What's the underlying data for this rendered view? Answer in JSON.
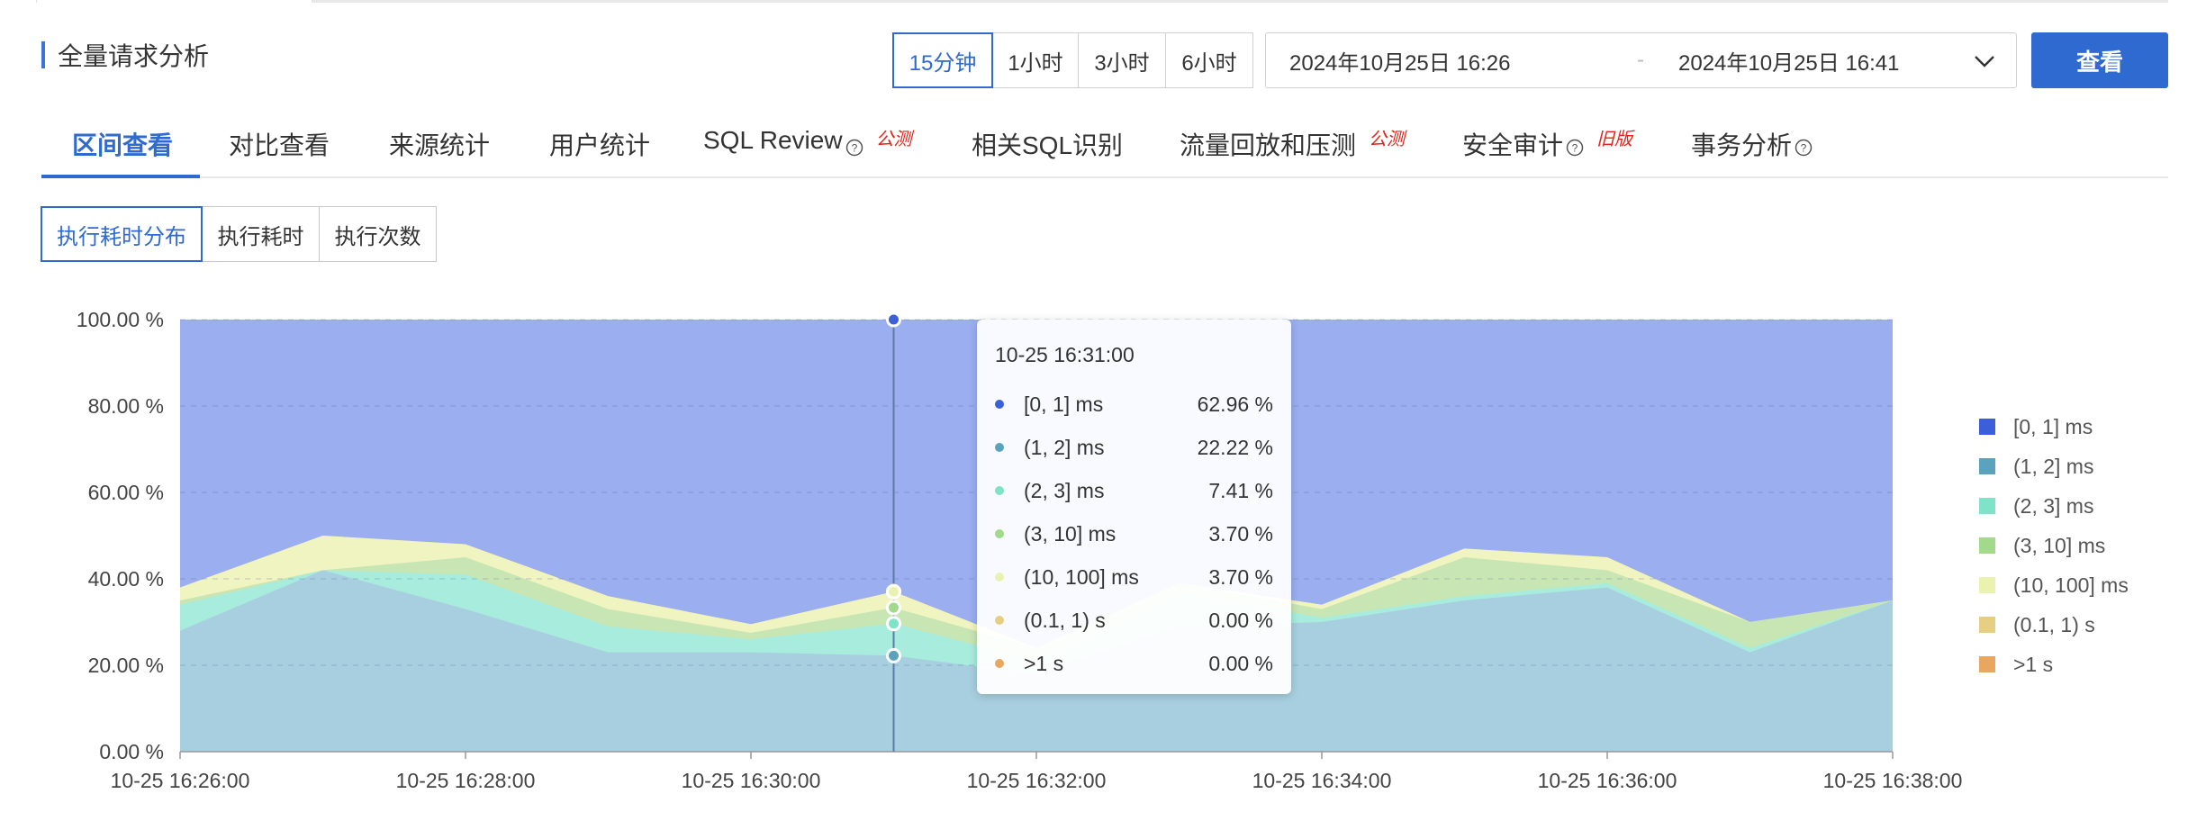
{
  "header": {
    "title": "全量请求分析"
  },
  "time_range": {
    "options": [
      "15分钟",
      "1小时",
      "3小时",
      "6小时"
    ],
    "selected": "15分钟",
    "start": "2024年10月25日 16:26",
    "separator": "-",
    "end": "2024年10月25日 16:41",
    "view_label": "查看"
  },
  "tabs": [
    {
      "label": "区间查看",
      "active": true
    },
    {
      "label": "对比查看"
    },
    {
      "label": "来源统计"
    },
    {
      "label": "用户统计"
    },
    {
      "label": "SQL Review",
      "help": true,
      "badge": "公测"
    },
    {
      "label": "相关SQL识别"
    },
    {
      "label": "流量回放和压测",
      "badge": "公测"
    },
    {
      "label": "安全审计",
      "help": true,
      "badge": "旧版"
    },
    {
      "label": "事务分析",
      "help": true
    }
  ],
  "sub_tabs": [
    {
      "label": "执行耗时分布",
      "active": true
    },
    {
      "label": "执行耗时"
    },
    {
      "label": "执行次数"
    }
  ],
  "colors": {
    "accent": "#2f6ad0",
    "badge": "#e2231a"
  },
  "chart_data": {
    "type": "area",
    "stacked": true,
    "percent": true,
    "x": [
      "10-25 16:26:00",
      "10-25 16:27:00",
      "10-25 16:28:00",
      "10-25 16:29:00",
      "10-25 16:30:00",
      "10-25 16:31:00",
      "10-25 16:32:00",
      "10-25 16:33:00",
      "10-25 16:34:00",
      "10-25 16:35:00",
      "10-25 16:36:00",
      "10-25 16:37:00",
      "10-25 16:38:00"
    ],
    "x_tick_labels": [
      "10-25 16:26:00",
      "10-25 16:28:00",
      "10-25 16:30:00",
      "10-25 16:32:00",
      "10-25 16:34:00",
      "10-25 16:36:00",
      "10-25 16:38:00"
    ],
    "y_tick_labels": [
      "0.00 %",
      "20.00 %",
      "40.00 %",
      "60.00 %",
      "80.00 %",
      "100.00 %"
    ],
    "ylim": [
      0,
      100
    ],
    "grid": true,
    "legend_position": "right",
    "series": [
      {
        "name": "(1, 2] ms",
        "color": "#a8cfe0",
        "values": [
          28,
          42,
          33,
          23,
          23,
          22.22,
          18,
          29,
          30,
          35,
          38,
          23,
          35
        ]
      },
      {
        "name": "(2, 3] ms",
        "color": "#a8ecdd",
        "values": [
          6,
          0,
          8,
          6,
          3,
          7.41,
          3,
          8,
          1,
          1,
          1,
          1,
          0
        ]
      },
      {
        "name": "(3, 10] ms",
        "color": "#c8e6b4",
        "values": [
          1,
          0,
          4,
          4,
          1.5,
          3.7,
          3,
          2,
          2,
          9,
          3,
          6,
          0
        ]
      },
      {
        "name": "(10, 100] ms",
        "color": "#f0f4c0",
        "values": [
          3,
          8,
          3,
          3,
          2,
          3.7,
          0,
          0,
          1,
          2,
          3,
          0,
          0
        ]
      },
      {
        "name": "(0.1, 1) s",
        "color": "#eed99a",
        "values": [
          0,
          0,
          0,
          0,
          0,
          0,
          0,
          0,
          0,
          0,
          0,
          0,
          0
        ]
      },
      {
        "name": ">1 s",
        "color": "#ecae6e",
        "values": [
          0,
          0,
          0,
          0,
          0,
          0,
          0,
          0,
          0,
          0,
          0,
          0,
          0
        ]
      }
    ],
    "top_series": {
      "name": "[0, 1] ms",
      "color": "#3b5fd9",
      "fill": "#9aaef0"
    },
    "legend": [
      {
        "name": "[0, 1] ms",
        "color": "#3b5fd9"
      },
      {
        "name": "(1, 2] ms",
        "color": "#5ba3bd"
      },
      {
        "name": "(2, 3] ms",
        "color": "#7fe3c9"
      },
      {
        "name": "(3, 10] ms",
        "color": "#a3d98a"
      },
      {
        "name": "(10, 100] ms",
        "color": "#eaf2b0"
      },
      {
        "name": "(0.1, 1) s",
        "color": "#e6cf82"
      },
      {
        "name": ">1 s",
        "color": "#e8a65e"
      }
    ],
    "hover_index": 5,
    "tooltip": {
      "title": "10-25 16:31:00",
      "rows": [
        {
          "label": "[0, 1] ms",
          "value": "62.96 %",
          "color": "#3b5fd9"
        },
        {
          "label": "(1, 2] ms",
          "value": "22.22 %",
          "color": "#5ba3bd"
        },
        {
          "label": "(2, 3] ms",
          "value": "7.41 %",
          "color": "#7fe3c9"
        },
        {
          "label": "(3, 10] ms",
          "value": "3.70 %",
          "color": "#a3d98a"
        },
        {
          "label": "(10, 100] ms",
          "value": "3.70 %",
          "color": "#eaf2b0"
        },
        {
          "label": "(0.1, 1) s",
          "value": "0.00 %",
          "color": "#e6cf82"
        },
        {
          "label": ">1 s",
          "value": "0.00 %",
          "color": "#e8a65e"
        }
      ]
    }
  }
}
